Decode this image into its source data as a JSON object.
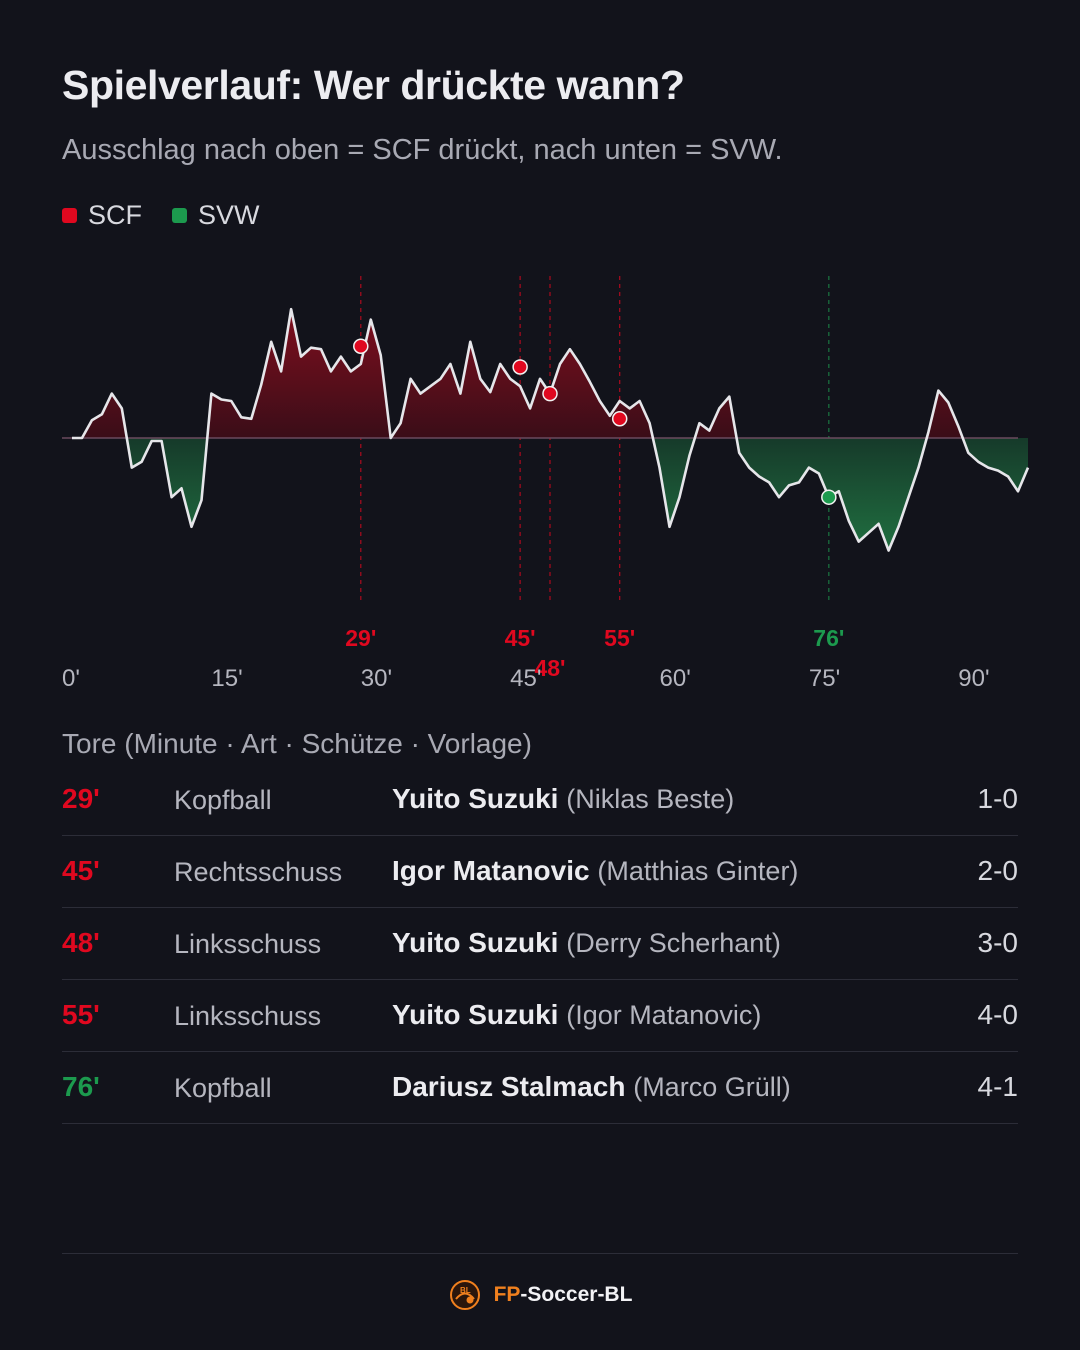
{
  "header": {
    "title": "Spielverlauf: Wer drückte wann?",
    "subtitle": "Ausschlag nach oben = SCF drückt, nach unten = SVW."
  },
  "legend": {
    "items": [
      {
        "label": "SCF",
        "color": "#e0081f"
      },
      {
        "label": "SVW",
        "color": "#1c9a4e"
      }
    ]
  },
  "colors": {
    "scf": "#e0081f",
    "svw": "#1c9a4e",
    "line": "#e6e6ea",
    "background": "#12131b"
  },
  "chart_data": {
    "type": "area",
    "title": "Spielverlauf: Wer drückte wann?",
    "x_ticks": [
      "0'",
      "15'",
      "30'",
      "45'",
      "60'",
      "75'",
      "90'"
    ],
    "x_tick_values": [
      0,
      15,
      30,
      45,
      60,
      75,
      90
    ],
    "xlim": [
      0,
      96
    ],
    "ylim": [
      -100,
      100
    ],
    "grid": false,
    "legend_position": "top-left",
    "series": [
      {
        "name": "SCF / SVW",
        "x": [
          0,
          1,
          2,
          3,
          4,
          5,
          6,
          7,
          8,
          9,
          10,
          11,
          12,
          13,
          14,
          15,
          16,
          17,
          18,
          19,
          20,
          21,
          22,
          23,
          24,
          25,
          26,
          27,
          28,
          29,
          30,
          31,
          32,
          33,
          34,
          35,
          36,
          37,
          38,
          39,
          40,
          41,
          42,
          43,
          44,
          45,
          46,
          47,
          48,
          49,
          50,
          51,
          52,
          53,
          54,
          55,
          56,
          57,
          58,
          59,
          60,
          61,
          62,
          63,
          64,
          65,
          66,
          67,
          68,
          69,
          70,
          71,
          72,
          73,
          74,
          75,
          76,
          77,
          78,
          79,
          80,
          81,
          82,
          83,
          84,
          85,
          86,
          87,
          88,
          89,
          90,
          91,
          92,
          93,
          94,
          95,
          96
        ],
        "y": [
          0,
          0,
          12,
          16,
          30,
          20,
          -20,
          -16,
          -2,
          -2,
          -40,
          -34,
          -60,
          -42,
          30,
          26,
          25,
          14,
          13,
          36,
          65,
          45,
          87,
          55,
          61,
          60,
          45,
          55,
          45,
          50,
          80,
          56,
          0,
          10,
          40,
          30,
          35,
          40,
          50,
          30,
          65,
          40,
          31,
          50,
          40,
          35,
          20,
          40,
          30,
          50,
          60,
          50,
          38,
          25,
          15,
          25,
          20,
          25,
          10,
          -20,
          -60,
          -40,
          -12,
          10,
          5,
          20,
          28,
          -10,
          -20,
          -26,
          -30,
          -40,
          -32,
          -30,
          -20,
          -24,
          -40,
          -36,
          -56,
          -70,
          -64,
          -58,
          -76,
          -60,
          -40,
          -20,
          4,
          32,
          24,
          8,
          -10,
          -16,
          -20,
          -22,
          -26,
          -36,
          -20
        ]
      }
    ],
    "goal_markers": [
      {
        "minute": 29,
        "label": "29'",
        "team": "SCF",
        "y": 62
      },
      {
        "minute": 45,
        "label": "45'",
        "team": "SCF",
        "y": 48
      },
      {
        "minute": 48,
        "label": "48'",
        "team": "SCF",
        "y": 30
      },
      {
        "minute": 55,
        "label": "55'",
        "team": "SCF",
        "y": 13
      },
      {
        "minute": 76,
        "label": "76'",
        "team": "SVW",
        "y": -40
      }
    ]
  },
  "goals_section": {
    "heading": "Tore (Minute · Art · Schütze · Vorlage)",
    "rows": [
      {
        "minute": "29'",
        "team": "SCF",
        "type": "Kopfball",
        "scorer": "Yuito Suzuki",
        "assist": "(Niklas Beste)",
        "score": "1-0"
      },
      {
        "minute": "45'",
        "team": "SCF",
        "type": "Rechtsschuss",
        "scorer": "Igor Matanovic",
        "assist": "(Matthias Ginter)",
        "score": "2-0"
      },
      {
        "minute": "48'",
        "team": "SCF",
        "type": "Linksschuss",
        "scorer": "Yuito Suzuki",
        "assist": "(Derry Scherhant)",
        "score": "3-0"
      },
      {
        "minute": "55'",
        "team": "SCF",
        "type": "Linksschuss",
        "scorer": "Yuito Suzuki",
        "assist": "(Igor Matanovic)",
        "score": "4-0"
      },
      {
        "minute": "76'",
        "team": "SVW",
        "type": "Kopfball",
        "scorer": "Dariusz Stalmach",
        "assist": "(Marco Grüll)",
        "score": "4-1"
      }
    ]
  },
  "footer": {
    "brand_prefix": "FP",
    "brand_suffix": "-Soccer-BL",
    "logo_text": "BL",
    "logo_icon": "soccer-logo-icon"
  }
}
